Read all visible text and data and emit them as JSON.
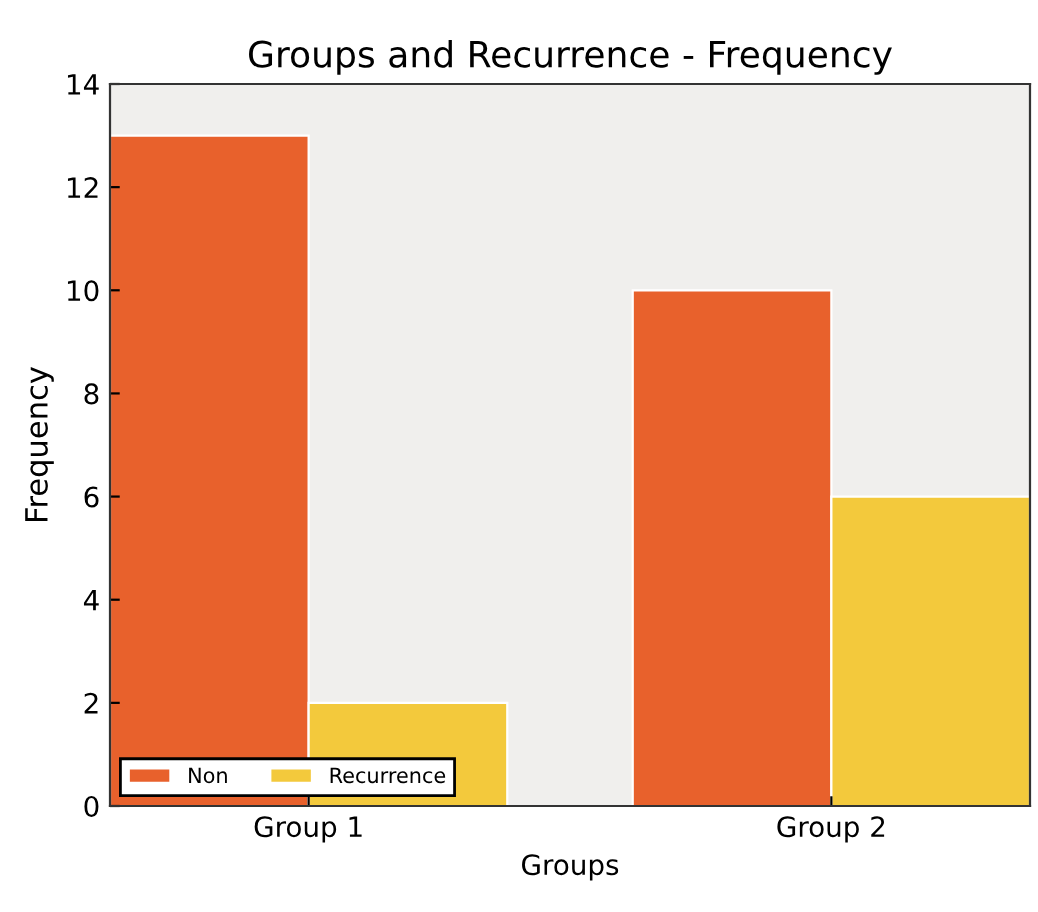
{
  "chart_data": {
    "type": "bar",
    "title": "Groups and Recurrence - Frequency",
    "xlabel": "Groups",
    "ylabel": "Frequency",
    "categories": [
      "Group 1",
      "Group 2"
    ],
    "series": [
      {
        "name": "Non",
        "color": "#e8612c",
        "values": [
          13,
          10
        ]
      },
      {
        "name": "Recurrence",
        "color": "#f3c93c",
        "values": [
          2,
          6
        ]
      }
    ],
    "ylim": [
      0,
      14
    ],
    "yticks": [
      0,
      2,
      4,
      6,
      8,
      10,
      12,
      14
    ],
    "grid": false,
    "legend": "bottom left"
  }
}
